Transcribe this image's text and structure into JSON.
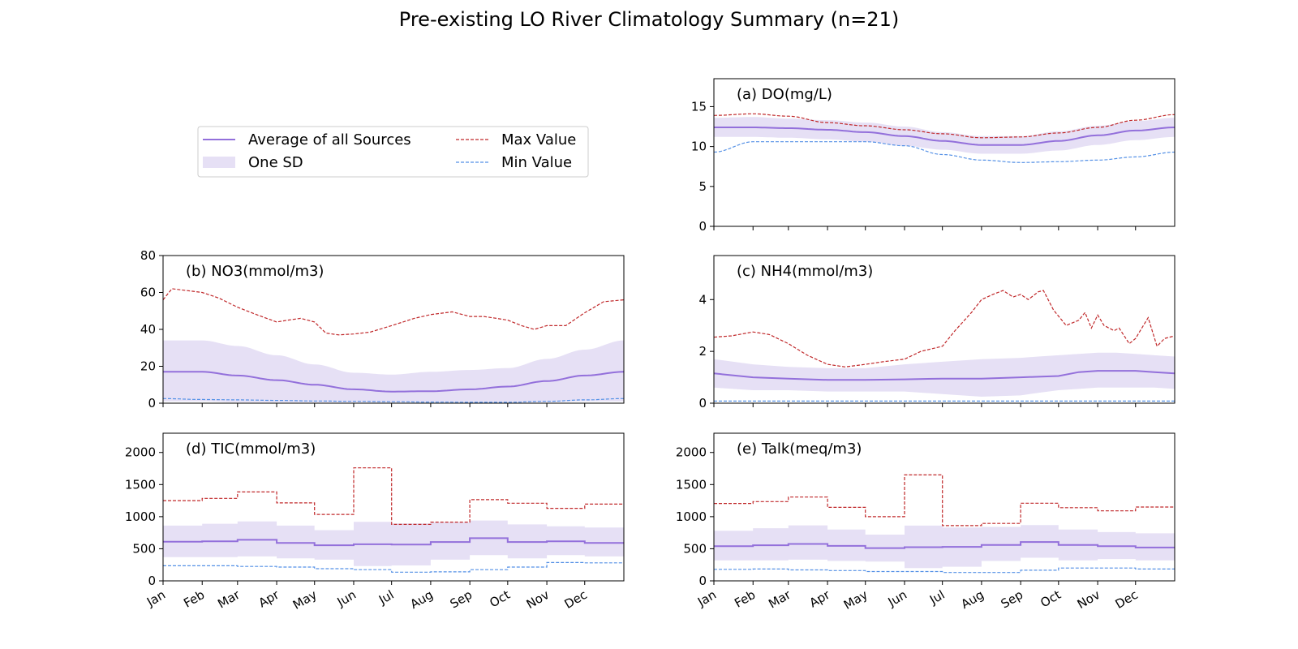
{
  "figure": {
    "title": "Pre-existing LO River Climatology Summary (n=21)"
  },
  "legend": {
    "placement": "upper-left, outside panels",
    "entries": [
      {
        "label": "Average of all Sources",
        "kind": "line",
        "color": "#9370DB"
      },
      {
        "label": "One SD",
        "kind": "band",
        "color": "#E6E0F5"
      },
      {
        "label": "Max Value",
        "kind": "dashed",
        "color": "#C0282A"
      },
      {
        "label": "Min Value",
        "kind": "dashed",
        "color": "#5591E6"
      }
    ]
  },
  "colors": {
    "avg": "#9370DB",
    "sd_band": "#E6E0F5",
    "max": "#C0282A",
    "min": "#5591E6",
    "axis": "#000000"
  },
  "chart_data": [
    {
      "id": "a",
      "type": "line",
      "label": "(a) DO(mg/L)",
      "x_kind": "day_of_year",
      "xlim": [
        1,
        366
      ],
      "ylim": [
        0,
        18.5
      ],
      "yticks": [
        0,
        5,
        10,
        15
      ],
      "xticks_shown": false,
      "grid": false,
      "series": [
        {
          "name": "Average of all Sources",
          "x": [
            1,
            32,
            60,
            91,
            121,
            152,
            182,
            213,
            244,
            274,
            305,
            335,
            366
          ],
          "values": [
            12.4,
            12.4,
            12.3,
            12.1,
            11.8,
            11.3,
            10.7,
            10.2,
            10.2,
            10.7,
            11.4,
            12.0,
            12.4
          ]
        },
        {
          "name": "One SD upper",
          "x": [
            1,
            32,
            60,
            91,
            121,
            152,
            182,
            213,
            244,
            274,
            305,
            335,
            366
          ],
          "values": [
            13.6,
            13.7,
            13.5,
            13.3,
            13.0,
            12.5,
            11.8,
            11.3,
            11.3,
            11.9,
            12.6,
            13.2,
            13.6
          ]
        },
        {
          "name": "One SD lower",
          "x": [
            1,
            32,
            60,
            91,
            121,
            152,
            182,
            213,
            244,
            274,
            305,
            335,
            366
          ],
          "values": [
            11.2,
            11.2,
            11.1,
            10.9,
            10.6,
            10.1,
            9.6,
            9.1,
            9.1,
            9.5,
            10.2,
            10.8,
            11.2
          ]
        },
        {
          "name": "Max Value",
          "x": [
            1,
            32,
            60,
            91,
            121,
            152,
            182,
            213,
            244,
            274,
            305,
            335,
            366
          ],
          "values": [
            13.9,
            14.1,
            13.8,
            13.0,
            12.6,
            12.1,
            11.6,
            11.1,
            11.2,
            11.7,
            12.4,
            13.3,
            14.0
          ]
        },
        {
          "name": "Min Value",
          "x": [
            1,
            32,
            60,
            91,
            121,
            152,
            182,
            213,
            244,
            274,
            305,
            335,
            366
          ],
          "values": [
            9.3,
            10.6,
            10.6,
            10.6,
            10.6,
            10.1,
            9.0,
            8.3,
            8.0,
            8.1,
            8.3,
            8.7,
            9.3
          ]
        }
      ]
    },
    {
      "id": "b",
      "type": "line",
      "label": "(b) NO3(mmol/m3)",
      "x_kind": "day_of_year",
      "xlim": [
        1,
        366
      ],
      "ylim": [
        0,
        80
      ],
      "yticks": [
        0,
        20,
        40,
        60,
        80
      ],
      "xticks_shown": false,
      "grid": false,
      "series": [
        {
          "name": "Average of all Sources",
          "x": [
            1,
            32,
            60,
            91,
            121,
            152,
            182,
            213,
            244,
            274,
            305,
            335,
            366
          ],
          "values": [
            17,
            17,
            15,
            12.5,
            10,
            7.5,
            6.3,
            6.5,
            7.5,
            9,
            12,
            15,
            17
          ]
        },
        {
          "name": "One SD upper",
          "x": [
            1,
            32,
            60,
            91,
            121,
            152,
            182,
            213,
            244,
            274,
            305,
            335,
            366
          ],
          "values": [
            34,
            34,
            31,
            26,
            21,
            16.5,
            15.5,
            17,
            18,
            19,
            24,
            29,
            34
          ]
        },
        {
          "name": "One SD lower",
          "x": [
            1,
            32,
            60,
            91,
            121,
            152,
            182,
            213,
            244,
            274,
            305,
            335,
            366
          ],
          "values": [
            1,
            1,
            0.5,
            0.5,
            0.5,
            0.5,
            0.5,
            0.5,
            0.5,
            0.5,
            0.5,
            1,
            1
          ]
        },
        {
          "name": "Max Value",
          "x": [
            1,
            8,
            20,
            32,
            45,
            60,
            75,
            91,
            100,
            110,
            121,
            130,
            140,
            152,
            165,
            182,
            200,
            213,
            230,
            244,
            255,
            265,
            274,
            285,
            295,
            305,
            320,
            335,
            350,
            366
          ],
          "values": [
            56,
            62,
            61,
            60,
            57,
            52,
            48,
            44,
            45,
            46,
            44,
            38,
            37,
            37.5,
            38.5,
            42,
            46,
            48,
            49.5,
            47,
            47,
            46,
            45,
            42,
            40,
            42,
            42,
            49,
            55,
            56
          ]
        },
        {
          "name": "Min Value",
          "x": [
            1,
            32,
            60,
            91,
            121,
            152,
            182,
            213,
            244,
            274,
            305,
            335,
            366
          ],
          "values": [
            2.5,
            2,
            1.8,
            1.5,
            1.2,
            1,
            0.8,
            0.6,
            0.5,
            0.5,
            1,
            1.8,
            2.5
          ]
        }
      ]
    },
    {
      "id": "c",
      "type": "line",
      "label": "(c) NH4(mmol/m3)",
      "x_kind": "day_of_year",
      "xlim": [
        1,
        366
      ],
      "ylim": [
        0,
        5.7
      ],
      "yticks": [
        0,
        2,
        4
      ],
      "xticks_shown": false,
      "grid": false,
      "series": [
        {
          "name": "Average of all Sources",
          "x": [
            1,
            32,
            60,
            91,
            121,
            152,
            182,
            213,
            244,
            258,
            274,
            290,
            305,
            320,
            335,
            350,
            366
          ],
          "values": [
            1.15,
            1.0,
            0.95,
            0.9,
            0.9,
            0.92,
            0.95,
            0.95,
            1.0,
            1.02,
            1.05,
            1.2,
            1.25,
            1.25,
            1.25,
            1.2,
            1.15
          ]
        },
        {
          "name": "One SD upper",
          "x": [
            1,
            32,
            60,
            91,
            121,
            152,
            182,
            213,
            244,
            258,
            274,
            290,
            305,
            320,
            335,
            350,
            366
          ],
          "values": [
            1.7,
            1.5,
            1.4,
            1.35,
            1.35,
            1.5,
            1.6,
            1.7,
            1.75,
            1.8,
            1.85,
            1.9,
            1.95,
            1.95,
            1.9,
            1.85,
            1.8
          ]
        },
        {
          "name": "One SD lower",
          "x": [
            1,
            32,
            60,
            91,
            121,
            152,
            182,
            213,
            244,
            258,
            274,
            290,
            305,
            320,
            335,
            350,
            366
          ],
          "values": [
            0.6,
            0.5,
            0.5,
            0.45,
            0.45,
            0.45,
            0.35,
            0.25,
            0.3,
            0.4,
            0.5,
            0.55,
            0.6,
            0.6,
            0.6,
            0.6,
            0.55
          ]
        },
        {
          "name": "Max Value",
          "x": [
            1,
            15,
            32,
            45,
            60,
            75,
            91,
            105,
            121,
            135,
            152,
            165,
            182,
            192,
            205,
            213,
            222,
            230,
            238,
            244,
            250,
            258,
            262,
            270,
            280,
            290,
            295,
            300,
            305,
            310,
            318,
            322,
            330,
            335,
            340,
            345,
            352,
            358,
            366
          ],
          "values": [
            2.55,
            2.6,
            2.75,
            2.65,
            2.3,
            1.85,
            1.5,
            1.4,
            1.5,
            1.6,
            1.7,
            2.0,
            2.2,
            2.8,
            3.5,
            4.0,
            4.2,
            4.35,
            4.1,
            4.2,
            4.0,
            4.3,
            4.35,
            3.6,
            3.0,
            3.2,
            3.5,
            2.9,
            3.4,
            3.0,
            2.8,
            2.9,
            2.3,
            2.5,
            2.9,
            3.3,
            2.2,
            2.5,
            2.6
          ]
        },
        {
          "name": "Min Value",
          "x": [
            1,
            366
          ],
          "values": [
            0.08,
            0.08
          ]
        }
      ]
    },
    {
      "id": "d",
      "type": "line",
      "label": "(d) TIC(mmol/m3)",
      "x_kind": "day_of_year",
      "xlim": [
        1,
        366
      ],
      "ylim": [
        0,
        2300
      ],
      "yticks": [
        0,
        500,
        1000,
        1500,
        2000
      ],
      "xticks_shown": true,
      "grid": false,
      "series": [
        {
          "name": "Average of all Sources",
          "step": true,
          "x": [
            1,
            32,
            60,
            91,
            121,
            152,
            182,
            213,
            244,
            274,
            305,
            335,
            366
          ],
          "values": [
            610,
            615,
            640,
            590,
            555,
            570,
            565,
            605,
            665,
            605,
            615,
            590,
            590
          ]
        },
        {
          "name": "One SD upper",
          "step": true,
          "x": [
            1,
            32,
            60,
            91,
            121,
            152,
            182,
            213,
            244,
            274,
            305,
            335,
            366
          ],
          "values": [
            860,
            890,
            925,
            860,
            790,
            920,
            895,
            910,
            940,
            880,
            850,
            830,
            830
          ]
        },
        {
          "name": "One SD lower",
          "step": true,
          "x": [
            1,
            32,
            60,
            91,
            121,
            152,
            182,
            213,
            244,
            274,
            305,
            335,
            366
          ],
          "values": [
            370,
            370,
            380,
            350,
            330,
            230,
            240,
            330,
            400,
            350,
            400,
            380,
            380
          ]
        },
        {
          "name": "Max Value",
          "step": true,
          "x": [
            1,
            32,
            60,
            91,
            121,
            152,
            182,
            213,
            244,
            274,
            305,
            335,
            366
          ],
          "values": [
            1250,
            1285,
            1385,
            1215,
            1035,
            1760,
            880,
            915,
            1265,
            1210,
            1130,
            1195,
            1195
          ]
        },
        {
          "name": "Min Value",
          "step": true,
          "x": [
            1,
            32,
            60,
            91,
            121,
            152,
            182,
            213,
            244,
            274,
            305,
            335,
            366
          ],
          "values": [
            235,
            235,
            225,
            215,
            190,
            175,
            135,
            140,
            175,
            215,
            285,
            280,
            280
          ]
        }
      ]
    },
    {
      "id": "e",
      "type": "line",
      "label": "(e) Talk(meq/m3)",
      "x_kind": "day_of_year",
      "xlim": [
        1,
        366
      ],
      "ylim": [
        0,
        2300
      ],
      "yticks": [
        0,
        500,
        1000,
        1500,
        2000
      ],
      "xticks_shown": true,
      "grid": false,
      "series": [
        {
          "name": "Average of all Sources",
          "step": true,
          "x": [
            1,
            32,
            60,
            91,
            121,
            152,
            182,
            213,
            244,
            274,
            305,
            335,
            366
          ],
          "values": [
            540,
            555,
            575,
            545,
            510,
            525,
            530,
            560,
            605,
            560,
            540,
            520,
            520
          ]
        },
        {
          "name": "One SD upper",
          "step": true,
          "x": [
            1,
            32,
            60,
            91,
            121,
            152,
            182,
            213,
            244,
            274,
            305,
            335,
            366
          ],
          "values": [
            780,
            820,
            865,
            800,
            720,
            860,
            830,
            840,
            870,
            800,
            760,
            740,
            740
          ]
        },
        {
          "name": "One SD lower",
          "step": true,
          "x": [
            1,
            32,
            60,
            91,
            121,
            152,
            182,
            213,
            244,
            274,
            305,
            335,
            366
          ],
          "values": [
            320,
            320,
            330,
            310,
            300,
            200,
            220,
            310,
            360,
            320,
            340,
            320,
            320
          ]
        },
        {
          "name": "Max Value",
          "step": true,
          "x": [
            1,
            32,
            60,
            91,
            121,
            152,
            182,
            213,
            244,
            274,
            305,
            335,
            366
          ],
          "values": [
            1205,
            1235,
            1305,
            1145,
            1000,
            1650,
            860,
            895,
            1210,
            1140,
            1090,
            1150,
            1150
          ]
        },
        {
          "name": "Min Value",
          "step": true,
          "x": [
            1,
            32,
            60,
            91,
            121,
            152,
            182,
            213,
            244,
            274,
            305,
            335,
            366
          ],
          "values": [
            180,
            185,
            170,
            160,
            145,
            145,
            130,
            130,
            165,
            200,
            200,
            185,
            185
          ]
        }
      ]
    }
  ],
  "x_axis": {
    "tick_days": [
      1,
      32,
      60,
      91,
      121,
      152,
      182,
      213,
      244,
      274,
      305,
      335
    ],
    "tick_labels": [
      "Jan",
      "Feb",
      "Mar",
      "Apr",
      "May",
      "Jun",
      "Jul",
      "Aug",
      "Sep",
      "Oct",
      "Nov",
      "Dec"
    ]
  }
}
